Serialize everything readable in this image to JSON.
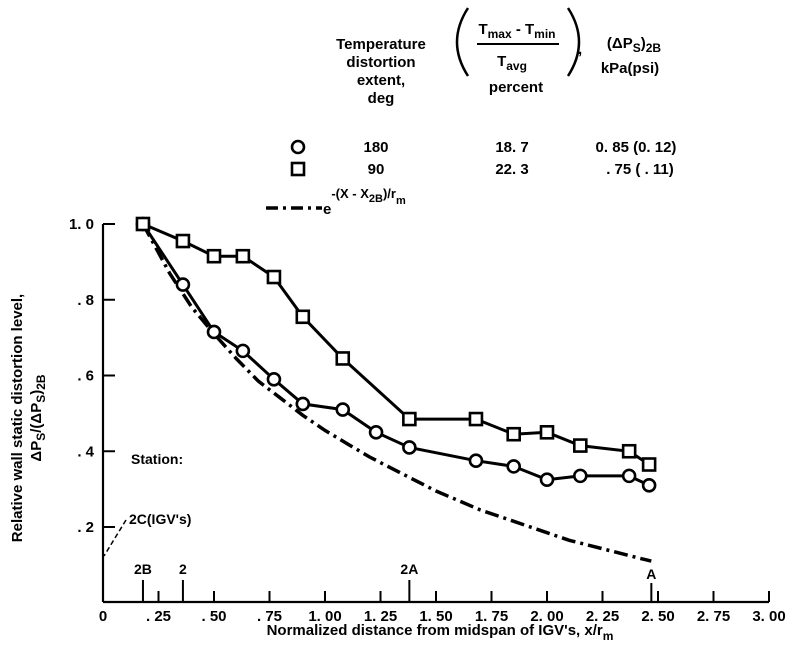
{
  "chart_data": {
    "type": "line",
    "xlabel": "Normalized distance from midspan of IGV's, x/r",
    "xlabel_sub": "m",
    "ylabel": "Relative wall static distortion level,",
    "ylabel_line2": "ΔP",
    "ylabel_line2_sub": "S",
    "ylabel_line2_mid": "/(ΔP",
    "ylabel_line2_sub2": "S",
    "ylabel_line2_end": ")",
    "ylabel_line2_sub3": "2B",
    "xlim": [
      0,
      3.0
    ],
    "ylim": [
      0.1,
      1.0
    ],
    "x_ticks": [
      0,
      0.25,
      0.5,
      0.75,
      1.0,
      1.25,
      1.5,
      1.75,
      2.0,
      2.25,
      2.5,
      2.75,
      3.0
    ],
    "x_tick_labels": [
      "0",
      ". 25",
      ". 50",
      ". 75",
      "1. 00",
      "1. 25",
      "1. 50",
      "1. 75",
      "2. 00",
      "2. 25",
      "2. 50",
      "2. 75",
      "3. 00"
    ],
    "y_ticks": [
      0.2,
      0.4,
      0.6,
      0.8,
      1.0
    ],
    "y_tick_labels": [
      ". 2",
      ". 4",
      ". 6",
      ". 8",
      "1. 0"
    ],
    "legend": {
      "headers": {
        "col1": [
          "Temperature",
          "distortion",
          "extent,",
          "deg"
        ],
        "col2_num": "T",
        "col2_num_sub1": "max",
        "col2_num_mid": " - T",
        "col2_num_sub2": "min",
        "col2_den": "T",
        "col2_den_sub": "avg",
        "col2_unit": "percent",
        "col2_comma": ",",
        "col3": "(ΔP",
        "col3_sub": "S",
        "col3_end": ")",
        "col3_sub2": "2B",
        "col3_unit": "kPa(psi)"
      },
      "rows": [
        {
          "marker": "circle",
          "extent": "180",
          "percent": "18. 7",
          "dp": "0. 85 (0. 12)"
        },
        {
          "marker": "square",
          "extent": "90",
          "percent": "22. 3",
          "dp": ". 75 ( . 11)"
        }
      ],
      "curve_label": "e",
      "curve_label_exp": "-(X - X",
      "curve_label_exp_sub": "2B",
      "curve_label_exp_end": ")/r",
      "curve_label_exp_sub2": "m"
    },
    "series": [
      {
        "marker": "circle",
        "x": [
          0.18,
          0.36,
          0.5,
          0.63,
          0.77,
          0.9,
          1.08,
          1.23,
          1.38,
          1.68,
          1.85,
          2.0,
          2.15,
          2.37,
          2.46
        ],
        "y": [
          1.0,
          0.84,
          0.715,
          0.665,
          0.59,
          0.525,
          0.51,
          0.45,
          0.41,
          0.375,
          0.36,
          0.325,
          0.335,
          0.335,
          0.31
        ]
      },
      {
        "marker": "square",
        "x": [
          0.18,
          0.36,
          0.5,
          0.63,
          0.77,
          0.9,
          1.08,
          1.38,
          1.68,
          1.85,
          2.0,
          2.15,
          2.37,
          2.46
        ],
        "y": [
          1.0,
          0.955,
          0.915,
          0.915,
          0.86,
          0.755,
          0.645,
          0.485,
          0.485,
          0.445,
          0.45,
          0.415,
          0.4,
          0.365
        ]
      }
    ],
    "exp_curve": {
      "style": "dash-dot",
      "x": [
        0.18,
        0.3,
        0.4,
        0.5,
        0.6,
        0.7,
        0.8,
        0.9,
        1.0,
        1.1,
        1.2,
        1.3,
        1.4,
        1.5,
        1.6,
        1.7,
        1.8,
        1.9,
        2.0,
        2.1,
        2.2,
        2.3,
        2.4,
        2.47
      ],
      "y": [
        1.0,
        0.87,
        0.78,
        0.71,
        0.645,
        0.585,
        0.54,
        0.495,
        0.455,
        0.42,
        0.385,
        0.355,
        0.325,
        0.295,
        0.27,
        0.245,
        0.225,
        0.205,
        0.185,
        0.165,
        0.15,
        0.135,
        0.12,
        0.11
      ]
    },
    "stations": {
      "heading": "Station:",
      "items": [
        {
          "label": "2B",
          "x": 0.18
        },
        {
          "label": "2",
          "x": 0.36
        },
        {
          "label": "2A",
          "x": 1.38
        },
        {
          "label": "A",
          "x": 2.47
        }
      ],
      "igv_label": "2C(IGV's)"
    }
  }
}
